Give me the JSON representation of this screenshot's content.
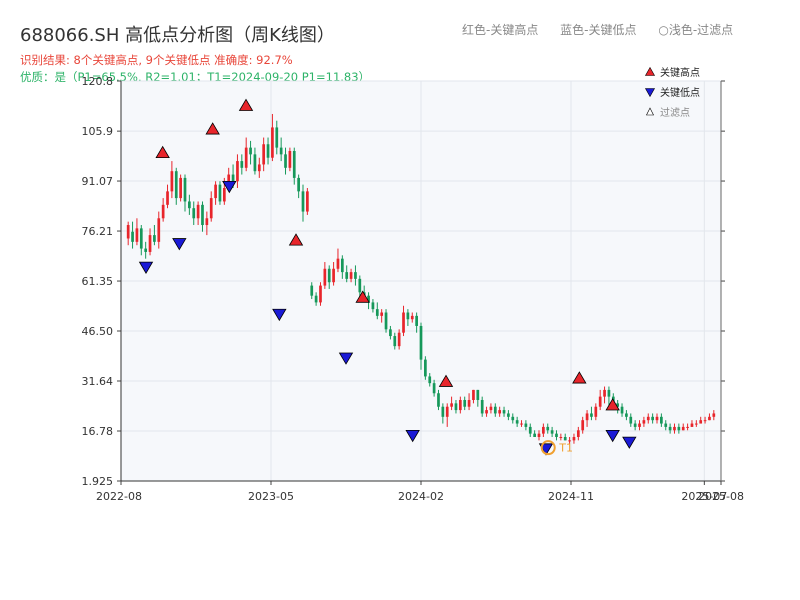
{
  "header": {
    "title": "688066.SH 高低点分析图（周K线图）",
    "legend_red": "红色-关键高点",
    "legend_blue": "蓝色-关键低点",
    "legend_filtered": "○浅色-过滤点",
    "result_line": "识别结果: 8个关键高点, 9个关键低点  准确度: 92.7%",
    "quality_line": "优质：是（P1=65.5%, R2=1.01；T1=2024-09-20 P1=11.83）"
  },
  "colors": {
    "up": "#e8252b",
    "down": "#16985a",
    "high_marker": "#e8252b",
    "low_marker": "#1a1ad6",
    "t1_marker": "#f0a030",
    "plot_bg": "#f6f8fb",
    "grid": "#e2e6ec"
  },
  "chart_data": {
    "type": "candlestick",
    "title": "688066.SH 高低点分析图（周K线图）",
    "ylim": [
      1.925,
      120.8
    ],
    "y_ticks": [
      "1.925",
      "16.78",
      "31.64",
      "46.50",
      "61.35",
      "76.21",
      "91.07",
      "105.9",
      "120.8"
    ],
    "x_ticks": [
      "2022-08",
      "2023-05",
      "2024-02",
      "2024-11",
      "2025-07",
      "2025-08"
    ],
    "x_range": [
      "2022-08",
      "2025-08"
    ],
    "legend": {
      "position": "top-right",
      "items": [
        {
          "label": "关键高点",
          "marker": "triangle-up",
          "color": "#e8252b"
        },
        {
          "label": "关键低点",
          "marker": "triangle-down",
          "color": "#1a1ad6"
        },
        {
          "label": "过滤点",
          "marker": "triangle-up-hollow",
          "color": "#888888"
        }
      ]
    },
    "key_highs": [
      {
        "date": "2022-10",
        "value": 97
      },
      {
        "date": "2023-01",
        "value": 104
      },
      {
        "date": "2023-03",
        "value": 111
      },
      {
        "date": "2023-06",
        "value": 71
      },
      {
        "date": "2023-10",
        "value": 54
      },
      {
        "date": "2024-03",
        "value": 29
      },
      {
        "date": "2024-11",
        "value": 30
      },
      {
        "date": "2025-01",
        "value": 22
      }
    ],
    "key_lows": [
      {
        "date": "2022-09",
        "value": 68
      },
      {
        "date": "2022-11",
        "value": 75
      },
      {
        "date": "2023-02",
        "value": 92
      },
      {
        "date": "2023-05",
        "value": 54
      },
      {
        "date": "2023-09",
        "value": 41
      },
      {
        "date": "2024-01",
        "value": 18
      },
      {
        "date": "2024-09",
        "value": 14
      },
      {
        "date": "2025-01",
        "value": 18
      },
      {
        "date": "2025-02",
        "value": 16
      }
    ],
    "annotations": [
      {
        "label": "T1",
        "date": "2024-09-20",
        "value": 11.83
      }
    ],
    "candles": [
      [
        74,
        78,
        79,
        72
      ],
      [
        76,
        73,
        79,
        71
      ],
      [
        73,
        77,
        80,
        72
      ],
      [
        77,
        71,
        78,
        69
      ],
      [
        71,
        70,
        73,
        68
      ],
      [
        70,
        75,
        77,
        69
      ],
      [
        75,
        73,
        78,
        72
      ],
      [
        73,
        80,
        82,
        71
      ],
      [
        80,
        84,
        86,
        79
      ],
      [
        84,
        88,
        90,
        83
      ],
      [
        88,
        94,
        97,
        86
      ],
      [
        94,
        86,
        95,
        84
      ],
      [
        86,
        92,
        93,
        85
      ],
      [
        92,
        85,
        93,
        82
      ],
      [
        85,
        83,
        87,
        81
      ],
      [
        83,
        80,
        85,
        78
      ],
      [
        80,
        84,
        85,
        78
      ],
      [
        84,
        78,
        85,
        76
      ],
      [
        78,
        80,
        82,
        75
      ],
      [
        80,
        86,
        88,
        79
      ],
      [
        86,
        90,
        91,
        84
      ],
      [
        90,
        85,
        91,
        84
      ],
      [
        85,
        89,
        92,
        84
      ],
      [
        89,
        93,
        95,
        88
      ],
      [
        93,
        91,
        96,
        89
      ],
      [
        91,
        97,
        99,
        89
      ],
      [
        97,
        95,
        99,
        93
      ],
      [
        95,
        101,
        104,
        94
      ],
      [
        101,
        99,
        103,
        96
      ],
      [
        99,
        94,
        101,
        93
      ],
      [
        94,
        96,
        98,
        92
      ],
      [
        96,
        102,
        104,
        94
      ],
      [
        102,
        98,
        104,
        96
      ],
      [
        98,
        107,
        111,
        97
      ],
      [
        107,
        101,
        109,
        99
      ],
      [
        101,
        99,
        104,
        97
      ],
      [
        99,
        95,
        101,
        93
      ],
      [
        95,
        100,
        101,
        94
      ],
      [
        100,
        92,
        101,
        90
      ],
      [
        92,
        88,
        93,
        86
      ],
      [
        88,
        82,
        90,
        79
      ],
      [
        82,
        88,
        89,
        81
      ],
      [
        60,
        57,
        61,
        56
      ],
      [
        57,
        55,
        58,
        54
      ],
      [
        55,
        60,
        61,
        54
      ],
      [
        60,
        65,
        67,
        59
      ],
      [
        65,
        61,
        66,
        59
      ],
      [
        61,
        65,
        67,
        60
      ],
      [
        65,
        68,
        71,
        64
      ],
      [
        68,
        64,
        69,
        62
      ],
      [
        64,
        62,
        66,
        61
      ],
      [
        62,
        64,
        65,
        61
      ],
      [
        64,
        62,
        66,
        60
      ],
      [
        62,
        58,
        63,
        56
      ],
      [
        58,
        57,
        60,
        55
      ],
      [
        57,
        55,
        58,
        53
      ],
      [
        55,
        53,
        56,
        52
      ],
      [
        53,
        51,
        55,
        50
      ],
      [
        51,
        52,
        53,
        49
      ],
      [
        52,
        47,
        53,
        46
      ],
      [
        47,
        45,
        48,
        44
      ],
      [
        45,
        42,
        46,
        41
      ],
      [
        42,
        46,
        47,
        41
      ],
      [
        46,
        52,
        54,
        45
      ],
      [
        52,
        50,
        53,
        48
      ],
      [
        50,
        51,
        52,
        49
      ],
      [
        51,
        48,
        52,
        46
      ],
      [
        48,
        38,
        49,
        35
      ],
      [
        38,
        33,
        39,
        32
      ],
      [
        33,
        31,
        34,
        30
      ],
      [
        31,
        28,
        32,
        27
      ],
      [
        28,
        24,
        29,
        23
      ],
      [
        24,
        21,
        25,
        19
      ],
      [
        21,
        24,
        25,
        18
      ],
      [
        24,
        25,
        27,
        23
      ],
      [
        25,
        23,
        26,
        22
      ],
      [
        23,
        26,
        27,
        22
      ],
      [
        26,
        24,
        27,
        23
      ],
      [
        24,
        26,
        28,
        23
      ],
      [
        26,
        29,
        29,
        25
      ],
      [
        29,
        26,
        29,
        24
      ],
      [
        26,
        22,
        27,
        21
      ],
      [
        22,
        23,
        24,
        21
      ],
      [
        23,
        24,
        25,
        22
      ],
      [
        24,
        22,
        25,
        21
      ],
      [
        22,
        23,
        24,
        21
      ],
      [
        23,
        22,
        24,
        21
      ],
      [
        22,
        21,
        23,
        20
      ],
      [
        21,
        20,
        22,
        19
      ],
      [
        20,
        19,
        21,
        18
      ],
      [
        19,
        19,
        20,
        18
      ],
      [
        19,
        18,
        20,
        17
      ],
      [
        18,
        16,
        19,
        15
      ],
      [
        16,
        15,
        17,
        15
      ],
      [
        15,
        16,
        17,
        14
      ],
      [
        16,
        18,
        19,
        15
      ],
      [
        18,
        17,
        19,
        16
      ],
      [
        17,
        16,
        18,
        15
      ],
      [
        16,
        15,
        17,
        14
      ],
      [
        15,
        15,
        16,
        14
      ],
      [
        15,
        14,
        16,
        14
      ],
      [
        14,
        14,
        15,
        13
      ],
      [
        14,
        15,
        16,
        13
      ],
      [
        15,
        17,
        18,
        14
      ],
      [
        17,
        20,
        21,
        16
      ],
      [
        20,
        22,
        23,
        18
      ],
      [
        22,
        21,
        24,
        20
      ],
      [
        21,
        24,
        25,
        20
      ],
      [
        24,
        27,
        29,
        23
      ],
      [
        27,
        29,
        30,
        25
      ],
      [
        29,
        27,
        30,
        24
      ],
      [
        27,
        25,
        28,
        23
      ],
      [
        25,
        24,
        26,
        22
      ],
      [
        24,
        22,
        25,
        21
      ],
      [
        22,
        21,
        23,
        20
      ],
      [
        21,
        19,
        22,
        18
      ],
      [
        19,
        18,
        20,
        17
      ],
      [
        18,
        19,
        20,
        17
      ],
      [
        19,
        20,
        21,
        18
      ],
      [
        20,
        21,
        22,
        19
      ],
      [
        21,
        20,
        22,
        19
      ],
      [
        20,
        21,
        22,
        19
      ],
      [
        21,
        19,
        22,
        18
      ],
      [
        19,
        18,
        20,
        17
      ],
      [
        18,
        17,
        19,
        16
      ],
      [
        17,
        18,
        19,
        16
      ],
      [
        18,
        17,
        19,
        16
      ],
      [
        17,
        18,
        19,
        17
      ],
      [
        18,
        18,
        19,
        17
      ],
      [
        18,
        19,
        20,
        18
      ],
      [
        19,
        19,
        20,
        18
      ],
      [
        19,
        20,
        21,
        19
      ],
      [
        20,
        20,
        21,
        19
      ],
      [
        20,
        21,
        22,
        20
      ],
      [
        21,
        22,
        23,
        20
      ]
    ]
  }
}
